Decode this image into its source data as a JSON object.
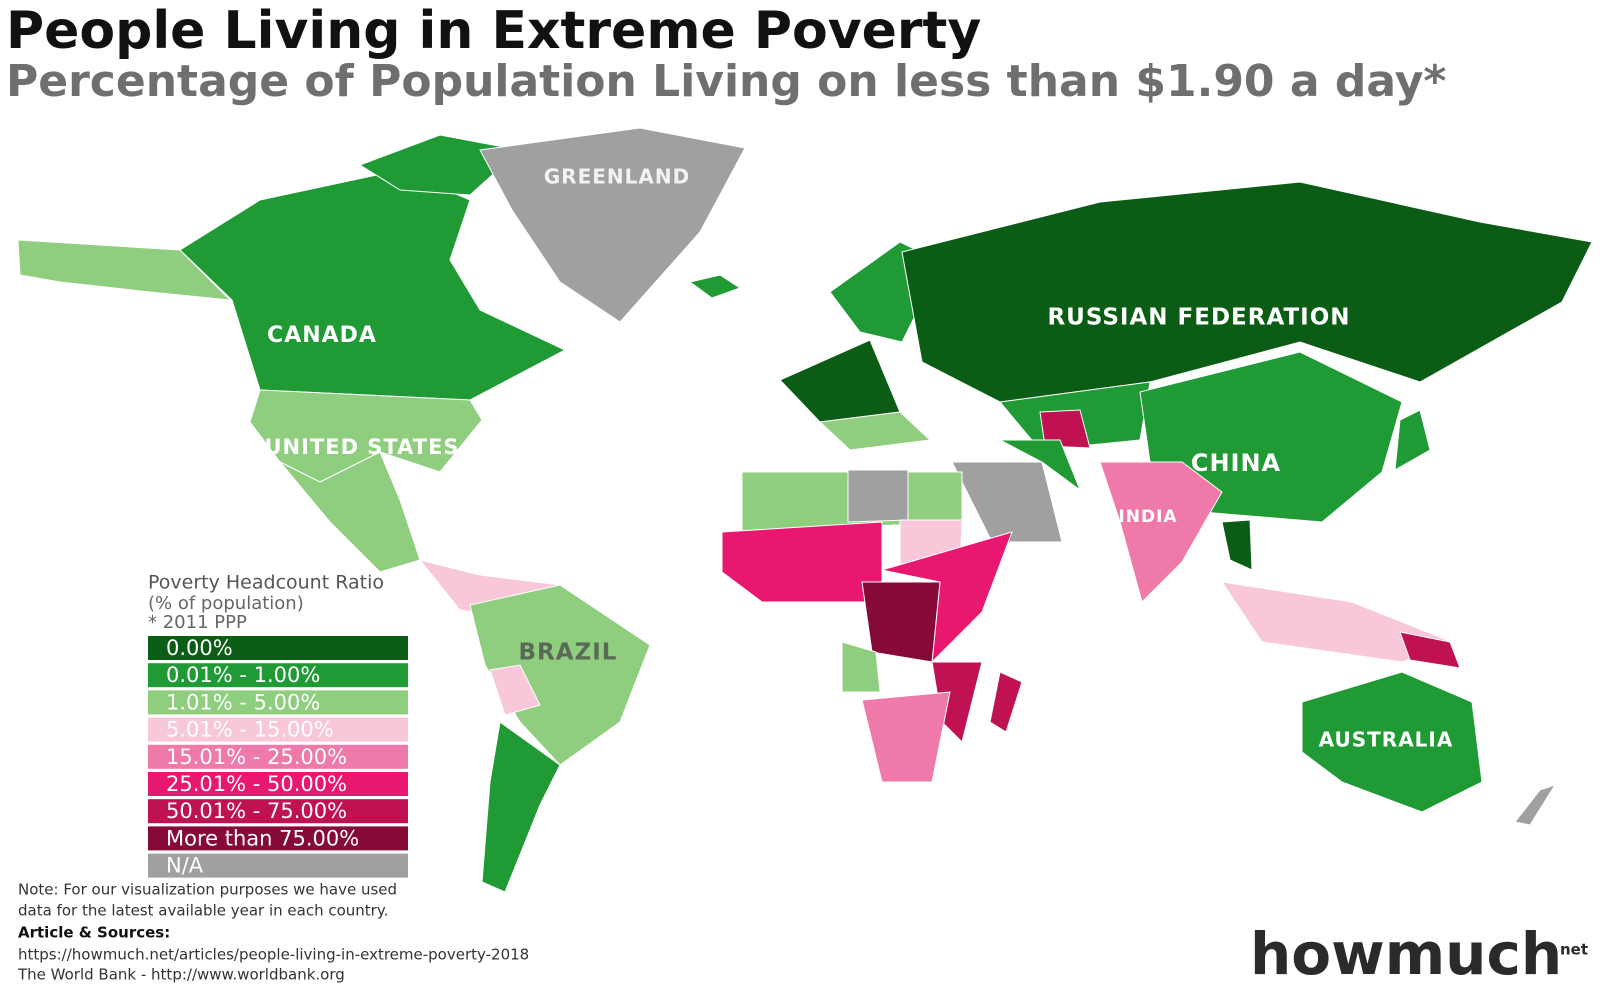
{
  "header": {
    "title": "People Living in Extreme Poverty",
    "subtitle": "Percentage of Population Living on less than $1.90 a day*"
  },
  "map": {
    "labels": [
      "GREENLAND",
      "CANADA",
      "UNITED STATES",
      "RUSSIAN FEDERATION",
      "CHINA",
      "INDIA",
      "BRAZIL",
      "AUSTRALIA"
    ]
  },
  "legend": {
    "title": "Poverty Headcount Ratio",
    "subtitle": "(% of population)",
    "note": "* 2011 PPP",
    "items": [
      {
        "label": "0.00%",
        "color": "#0b5c14"
      },
      {
        "label": "0.01% - 1.00%",
        "color": "#1f9a35"
      },
      {
        "label": "1.01% - 5.00%",
        "color": "#8fcd7f"
      },
      {
        "label": "5.01% - 15.00%",
        "color": "#f8c8da"
      },
      {
        "label": "15.01% - 25.00%",
        "color": "#ef7aa9"
      },
      {
        "label": "25.01% - 50.00%",
        "color": "#e8176f"
      },
      {
        "label": "50.01% - 75.00%",
        "color": "#c01252"
      },
      {
        "label": "More than 75.00%",
        "color": "#860a38"
      },
      {
        "label": "N/A",
        "color": "#a0a0a0"
      }
    ]
  },
  "footer": {
    "note": [
      "Note: For our visualization purposes we have used",
      "data for the latest available year in each country."
    ],
    "sources_heading": "Article & Sources:",
    "sources": [
      "https://howmuch.net/articles/people-living-in-extreme-poverty-2018",
      "The World Bank - http://www.worldbank.org"
    ],
    "logo": {
      "how": "how",
      "much": "much",
      "suffix": "net"
    }
  }
}
